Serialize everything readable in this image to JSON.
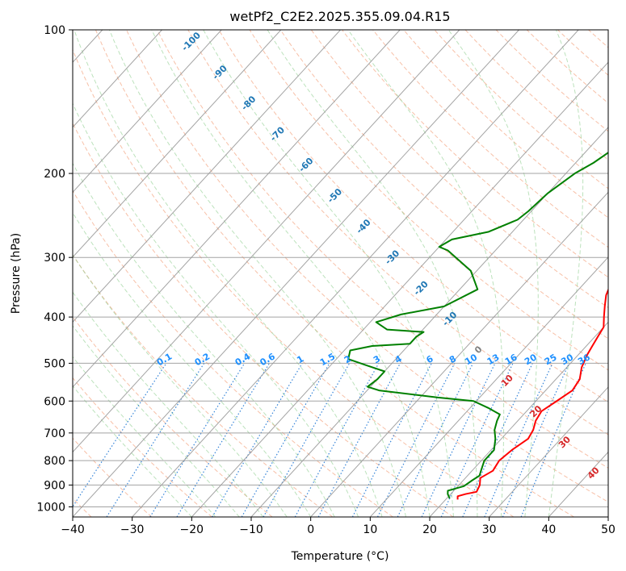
{
  "chart_data": {
    "type": "line",
    "title": "wetPf2_C2E2.2025.355.09.04.R15",
    "xlabel": "Temperature (°C)",
    "ylabel": "Pressure (hPa)",
    "xlim": [
      -40,
      50
    ],
    "ylim": [
      1050,
      100
    ],
    "y_scale": "log",
    "x_ticks": [
      "−40",
      "−30",
      "−20",
      "−10",
      "0",
      "10",
      "20",
      "30",
      "40",
      "50"
    ],
    "x_tick_values": [
      -40,
      -30,
      -20,
      -10,
      0,
      10,
      20,
      30,
      40,
      50
    ],
    "y_ticks": [
      "100",
      "200",
      "300",
      "400",
      "500",
      "600",
      "700",
      "800",
      "900",
      "1000"
    ],
    "y_tick_values": [
      100,
      200,
      300,
      400,
      500,
      600,
      700,
      800,
      900,
      1000
    ],
    "grid": true,
    "series": [
      {
        "color": "#ff0000",
        "points": [
          [
            22.0,
            965
          ],
          [
            21.5,
            950
          ],
          [
            22.5,
            940
          ],
          [
            24.0,
            930
          ],
          [
            23.5,
            900
          ],
          [
            22.5,
            870
          ],
          [
            23.5,
            840
          ],
          [
            23.0,
            800
          ],
          [
            23.5,
            760
          ],
          [
            24.5,
            720
          ],
          [
            24.0,
            690
          ],
          [
            23.0,
            660
          ],
          [
            22.5,
            630
          ],
          [
            23.5,
            600
          ],
          [
            24.5,
            570
          ],
          [
            24.0,
            540
          ],
          [
            22.5,
            510
          ],
          [
            21.5,
            480
          ],
          [
            21.0,
            460
          ],
          [
            20.5,
            440
          ],
          [
            20.0,
            420
          ],
          [
            18.5,
            400
          ],
          [
            17.0,
            380
          ],
          [
            15.5,
            360
          ],
          [
            14.5,
            340
          ],
          [
            13.0,
            310
          ],
          [
            12.0,
            290
          ],
          [
            10.5,
            270
          ],
          [
            9.0,
            250
          ],
          [
            8.5,
            240
          ],
          [
            6.0,
            220
          ],
          [
            4.5,
            205
          ],
          [
            2.5,
            190
          ],
          [
            1.0,
            180
          ],
          [
            -0.5,
            170
          ],
          [
            -1.5,
            160
          ],
          [
            -2.5,
            150
          ],
          [
            -3.0,
            140
          ],
          [
            -2.5,
            130
          ],
          [
            -3.0,
            120
          ],
          [
            -3.0,
            115
          ],
          [
            -2.5,
            110
          ],
          [
            -2.0,
            105
          ],
          [
            -1.0,
            100
          ]
        ]
      },
      {
        "color": "#008000",
        "points": [
          [
            20.5,
            960
          ],
          [
            19.5,
            940
          ],
          [
            19.0,
            925
          ],
          [
            21.0,
            905
          ],
          [
            21.5,
            880
          ],
          [
            22.0,
            860
          ],
          [
            21.5,
            840
          ],
          [
            20.5,
            800
          ],
          [
            20.5,
            760
          ],
          [
            19.0,
            720
          ],
          [
            17.5,
            690
          ],
          [
            16.5,
            660
          ],
          [
            16.0,
            640
          ],
          [
            13.0,
            620
          ],
          [
            9.5,
            600
          ],
          [
            3.0,
            590
          ],
          [
            -8.0,
            570
          ],
          [
            -10.5,
            560
          ],
          [
            -10.0,
            540
          ],
          [
            -10.0,
            520
          ],
          [
            -14.0,
            505
          ],
          [
            -18.0,
            490
          ],
          [
            -19.0,
            470
          ],
          [
            -16.0,
            460
          ],
          [
            -10.0,
            455
          ],
          [
            -10.0,
            440
          ],
          [
            -9.5,
            430
          ],
          [
            -16.0,
            425
          ],
          [
            -19.0,
            410
          ],
          [
            -16.0,
            395
          ],
          [
            -10.0,
            380
          ],
          [
            -7.0,
            350
          ],
          [
            -11.0,
            320
          ],
          [
            -18.0,
            290
          ],
          [
            -20.0,
            285
          ],
          [
            -19.0,
            275
          ],
          [
            -14.0,
            265
          ],
          [
            -11.0,
            250
          ],
          [
            -10.5,
            240
          ],
          [
            -10.0,
            220
          ],
          [
            -8.5,
            200
          ],
          [
            -7.0,
            190
          ],
          [
            -6.0,
            180
          ],
          [
            -4.5,
            170
          ],
          [
            -3.0,
            165
          ],
          [
            -2.5,
            155
          ],
          [
            -2.5,
            145
          ],
          [
            -1.5,
            135
          ],
          [
            -2.0,
            125
          ],
          [
            -2.0,
            115
          ],
          [
            -1.0,
            110
          ],
          [
            -1.0,
            105
          ],
          [
            -0.5,
            100
          ]
        ]
      }
    ],
    "dry_adiabat_labels": [
      "-100",
      "-90",
      "-80",
      "-70",
      "-60",
      "-50",
      "-40",
      "-30",
      "-20",
      "-10",
      "0",
      "10",
      "20",
      "30",
      "40"
    ],
    "dry_adiabat_label_colors": {
      "cold": "#1f77b4",
      "zero": "#808080",
      "warm": "#d62728"
    },
    "mixing_ratio_labels": [
      "0.1",
      "0.2",
      "0.4",
      "0.6",
      "1",
      "1.5",
      "2",
      "3",
      "4",
      "6",
      "8",
      "10",
      "13",
      "16",
      "20",
      "25",
      "30",
      "36"
    ],
    "mixing_ratio_values": [
      0.1,
      0.2,
      0.4,
      0.6,
      1,
      1.5,
      2,
      3,
      4,
      6,
      8,
      10,
      13,
      16,
      20,
      25,
      30,
      36
    ]
  }
}
